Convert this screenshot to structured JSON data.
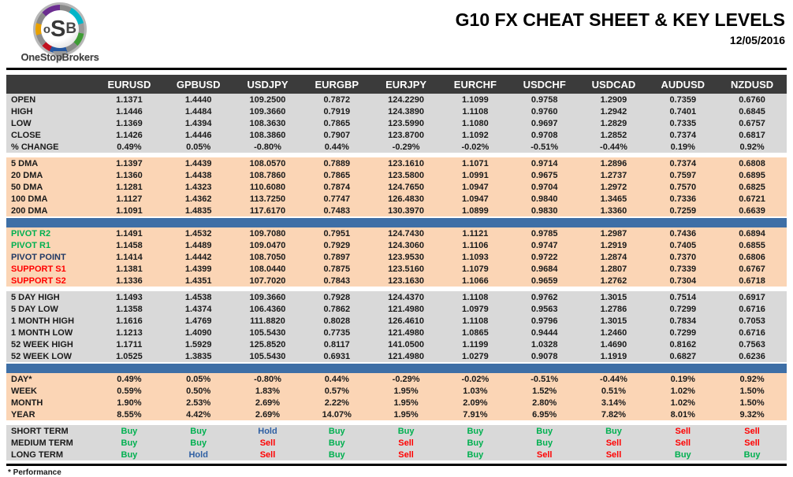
{
  "header": {
    "logo_o": "o",
    "logo_s": "S",
    "logo_b": "B",
    "logo_subtext": "OneStopBrokers",
    "title": "G10 FX CHEAT SHEET & KEY LEVELS",
    "date": "12/05/2016"
  },
  "footer": {
    "note": "* Performance"
  },
  "colors": {
    "header_bg": "#3b3b3b",
    "section_gray": "#d9d9d9",
    "section_peach": "#fbd5b5",
    "accent_bar": "#3e6fa6",
    "buy": "#00b050",
    "sell": "#ff0000",
    "hold": "#2e5fa3",
    "pivot_resistance": "#00b050",
    "pivot_point": "#1f3864",
    "support": "#ff0000"
  },
  "chart_data": {
    "type": "table",
    "title": "G10 FX CHEAT SHEET & KEY LEVELS",
    "columns": [
      "EURUSD",
      "GPBUSD",
      "USDJPY",
      "EURGBP",
      "EURJPY",
      "EURCHF",
      "USDCHF",
      "USDCAD",
      "AUDUSD",
      "NZDUSD"
    ],
    "sections": [
      {
        "name": "ohlc",
        "style": "gray",
        "before": "none",
        "rows": [
          {
            "label": "OPEN",
            "values": [
              "1.1371",
              "1.4440",
              "109.2500",
              "0.7872",
              "124.2290",
              "1.1099",
              "0.9758",
              "1.2909",
              "0.7359",
              "0.6760"
            ]
          },
          {
            "label": "HIGH",
            "values": [
              "1.1446",
              "1.4484",
              "109.3660",
              "0.7919",
              "124.3890",
              "1.1108",
              "0.9760",
              "1.2942",
              "0.7401",
              "0.6845"
            ]
          },
          {
            "label": "LOW",
            "values": [
              "1.1369",
              "1.4394",
              "108.3630",
              "0.7865",
              "123.5990",
              "1.1080",
              "0.9697",
              "1.2829",
              "0.7335",
              "0.6757"
            ]
          },
          {
            "label": "CLOSE",
            "values": [
              "1.1426",
              "1.4446",
              "108.3860",
              "0.7907",
              "123.8700",
              "1.1092",
              "0.9708",
              "1.2852",
              "0.7374",
              "0.6817"
            ]
          },
          {
            "label": "% CHANGE",
            "values": [
              "0.49%",
              "0.05%",
              "-0.80%",
              "0.44%",
              "-0.29%",
              "-0.02%",
              "-0.51%",
              "-0.44%",
              "0.19%",
              "0.92%"
            ]
          }
        ]
      },
      {
        "name": "moving-averages",
        "style": "peach",
        "before": "gap",
        "rows": [
          {
            "label": "5 DMA",
            "values": [
              "1.1397",
              "1.4439",
              "108.0570",
              "0.7889",
              "123.1610",
              "1.1071",
              "0.9714",
              "1.2896",
              "0.7374",
              "0.6808"
            ]
          },
          {
            "label": "20 DMA",
            "values": [
              "1.1360",
              "1.4438",
              "108.7860",
              "0.7865",
              "123.5800",
              "1.0991",
              "0.9675",
              "1.2737",
              "0.7597",
              "0.6895"
            ]
          },
          {
            "label": "50 DMA",
            "values": [
              "1.1281",
              "1.4323",
              "110.6080",
              "0.7874",
              "124.7650",
              "1.0947",
              "0.9704",
              "1.2972",
              "0.7570",
              "0.6825"
            ]
          },
          {
            "label": "100 DMA",
            "values": [
              "1.1127",
              "1.4362",
              "113.7250",
              "0.7747",
              "126.4830",
              "1.0947",
              "0.9840",
              "1.3465",
              "0.7336",
              "0.6721"
            ]
          },
          {
            "label": "200 DMA",
            "values": [
              "1.1091",
              "1.4835",
              "117.6170",
              "0.7483",
              "130.3970",
              "1.0899",
              "0.9830",
              "1.3360",
              "0.7259",
              "0.6639"
            ]
          }
        ]
      },
      {
        "name": "pivots",
        "style": "peach",
        "before": "bar",
        "rows": [
          {
            "label": "PIVOT R2",
            "label_style": "pivot_resistance",
            "values": [
              "1.1491",
              "1.4532",
              "109.7080",
              "0.7951",
              "124.7430",
              "1.1121",
              "0.9785",
              "1.2987",
              "0.7436",
              "0.6894"
            ]
          },
          {
            "label": "PIVOT R1",
            "label_style": "pivot_resistance",
            "values": [
              "1.1458",
              "1.4489",
              "109.0470",
              "0.7929",
              "124.3060",
              "1.1106",
              "0.9747",
              "1.2919",
              "0.7405",
              "0.6855"
            ]
          },
          {
            "label": "PIVOT POINT",
            "label_style": "pivot_point",
            "values": [
              "1.1414",
              "1.4442",
              "108.7050",
              "0.7897",
              "123.9530",
              "1.1093",
              "0.9722",
              "1.2874",
              "0.7370",
              "0.6806"
            ]
          },
          {
            "label": "SUPPORT S1",
            "label_style": "support",
            "values": [
              "1.1381",
              "1.4399",
              "108.0440",
              "0.7875",
              "123.5160",
              "1.1079",
              "0.9684",
              "1.2807",
              "0.7339",
              "0.6767"
            ]
          },
          {
            "label": "SUPPORT S2",
            "label_style": "support",
            "values": [
              "1.1336",
              "1.4351",
              "107.7020",
              "0.7843",
              "123.1630",
              "1.1066",
              "0.9659",
              "1.2762",
              "0.7304",
              "0.6718"
            ]
          }
        ]
      },
      {
        "name": "ranges",
        "style": "gray",
        "before": "gap",
        "rows": [
          {
            "label": "5 DAY HIGH",
            "values": [
              "1.1493",
              "1.4538",
              "109.3660",
              "0.7928",
              "124.4370",
              "1.1108",
              "0.9762",
              "1.3015",
              "0.7514",
              "0.6917"
            ]
          },
          {
            "label": "5 DAY LOW",
            "values": [
              "1.1358",
              "1.4374",
              "106.4360",
              "0.7862",
              "121.4980",
              "1.0979",
              "0.9563",
              "1.2786",
              "0.7299",
              "0.6716"
            ]
          },
          {
            "label": "1 MONTH HIGH",
            "values": [
              "1.1616",
              "1.4769",
              "111.8820",
              "0.8028",
              "126.4610",
              "1.1108",
              "0.9796",
              "1.3015",
              "0.7834",
              "0.7053"
            ]
          },
          {
            "label": "1 MONTH LOW",
            "values": [
              "1.1213",
              "1.4090",
              "105.5430",
              "0.7735",
              "121.4980",
              "1.0865",
              "0.9444",
              "1.2460",
              "0.7299",
              "0.6716"
            ]
          },
          {
            "label": "52 WEEK HIGH",
            "values": [
              "1.1711",
              "1.5929",
              "125.8520",
              "0.8117",
              "141.0500",
              "1.1199",
              "1.0328",
              "1.4690",
              "0.8162",
              "0.7563"
            ]
          },
          {
            "label": "52 WEEK LOW",
            "values": [
              "1.0525",
              "1.3835",
              "105.5430",
              "0.6931",
              "121.4980",
              "1.0279",
              "0.9078",
              "1.1919",
              "0.6827",
              "0.6236"
            ]
          }
        ]
      },
      {
        "name": "performance",
        "style": "peach",
        "before": "bar",
        "rows": [
          {
            "label": "DAY*",
            "values": [
              "0.49%",
              "0.05%",
              "-0.80%",
              "0.44%",
              "-0.29%",
              "-0.02%",
              "-0.51%",
              "-0.44%",
              "0.19%",
              "0.92%"
            ]
          },
          {
            "label": "WEEK",
            "values": [
              "0.59%",
              "0.50%",
              "1.83%",
              "0.57%",
              "1.95%",
              "1.03%",
              "1.52%",
              "0.51%",
              "1.02%",
              "1.50%"
            ]
          },
          {
            "label": "MONTH",
            "values": [
              "1.90%",
              "2.53%",
              "2.69%",
              "2.22%",
              "1.95%",
              "2.09%",
              "2.80%",
              "3.14%",
              "1.02%",
              "1.50%"
            ]
          },
          {
            "label": "YEAR",
            "values": [
              "8.55%",
              "4.42%",
              "2.69%",
              "14.07%",
              "1.95%",
              "7.91%",
              "6.95%",
              "7.82%",
              "8.01%",
              "9.32%"
            ]
          }
        ]
      },
      {
        "name": "signals",
        "style": "gray",
        "before": "gap",
        "value_type": "rating",
        "rows": [
          {
            "label": "SHORT TERM",
            "values": [
              "Buy",
              "Buy",
              "Hold",
              "Buy",
              "Buy",
              "Buy",
              "Buy",
              "Buy",
              "Sell",
              "Sell"
            ]
          },
          {
            "label": "MEDIUM TERM",
            "values": [
              "Buy",
              "Buy",
              "Sell",
              "Buy",
              "Sell",
              "Buy",
              "Buy",
              "Sell",
              "Sell",
              "Sell"
            ]
          },
          {
            "label": "LONG TERM",
            "values": [
              "Buy",
              "Hold",
              "Sell",
              "Buy",
              "Sell",
              "Buy",
              "Sell",
              "Sell",
              "Buy",
              "Buy"
            ]
          }
        ]
      }
    ]
  }
}
